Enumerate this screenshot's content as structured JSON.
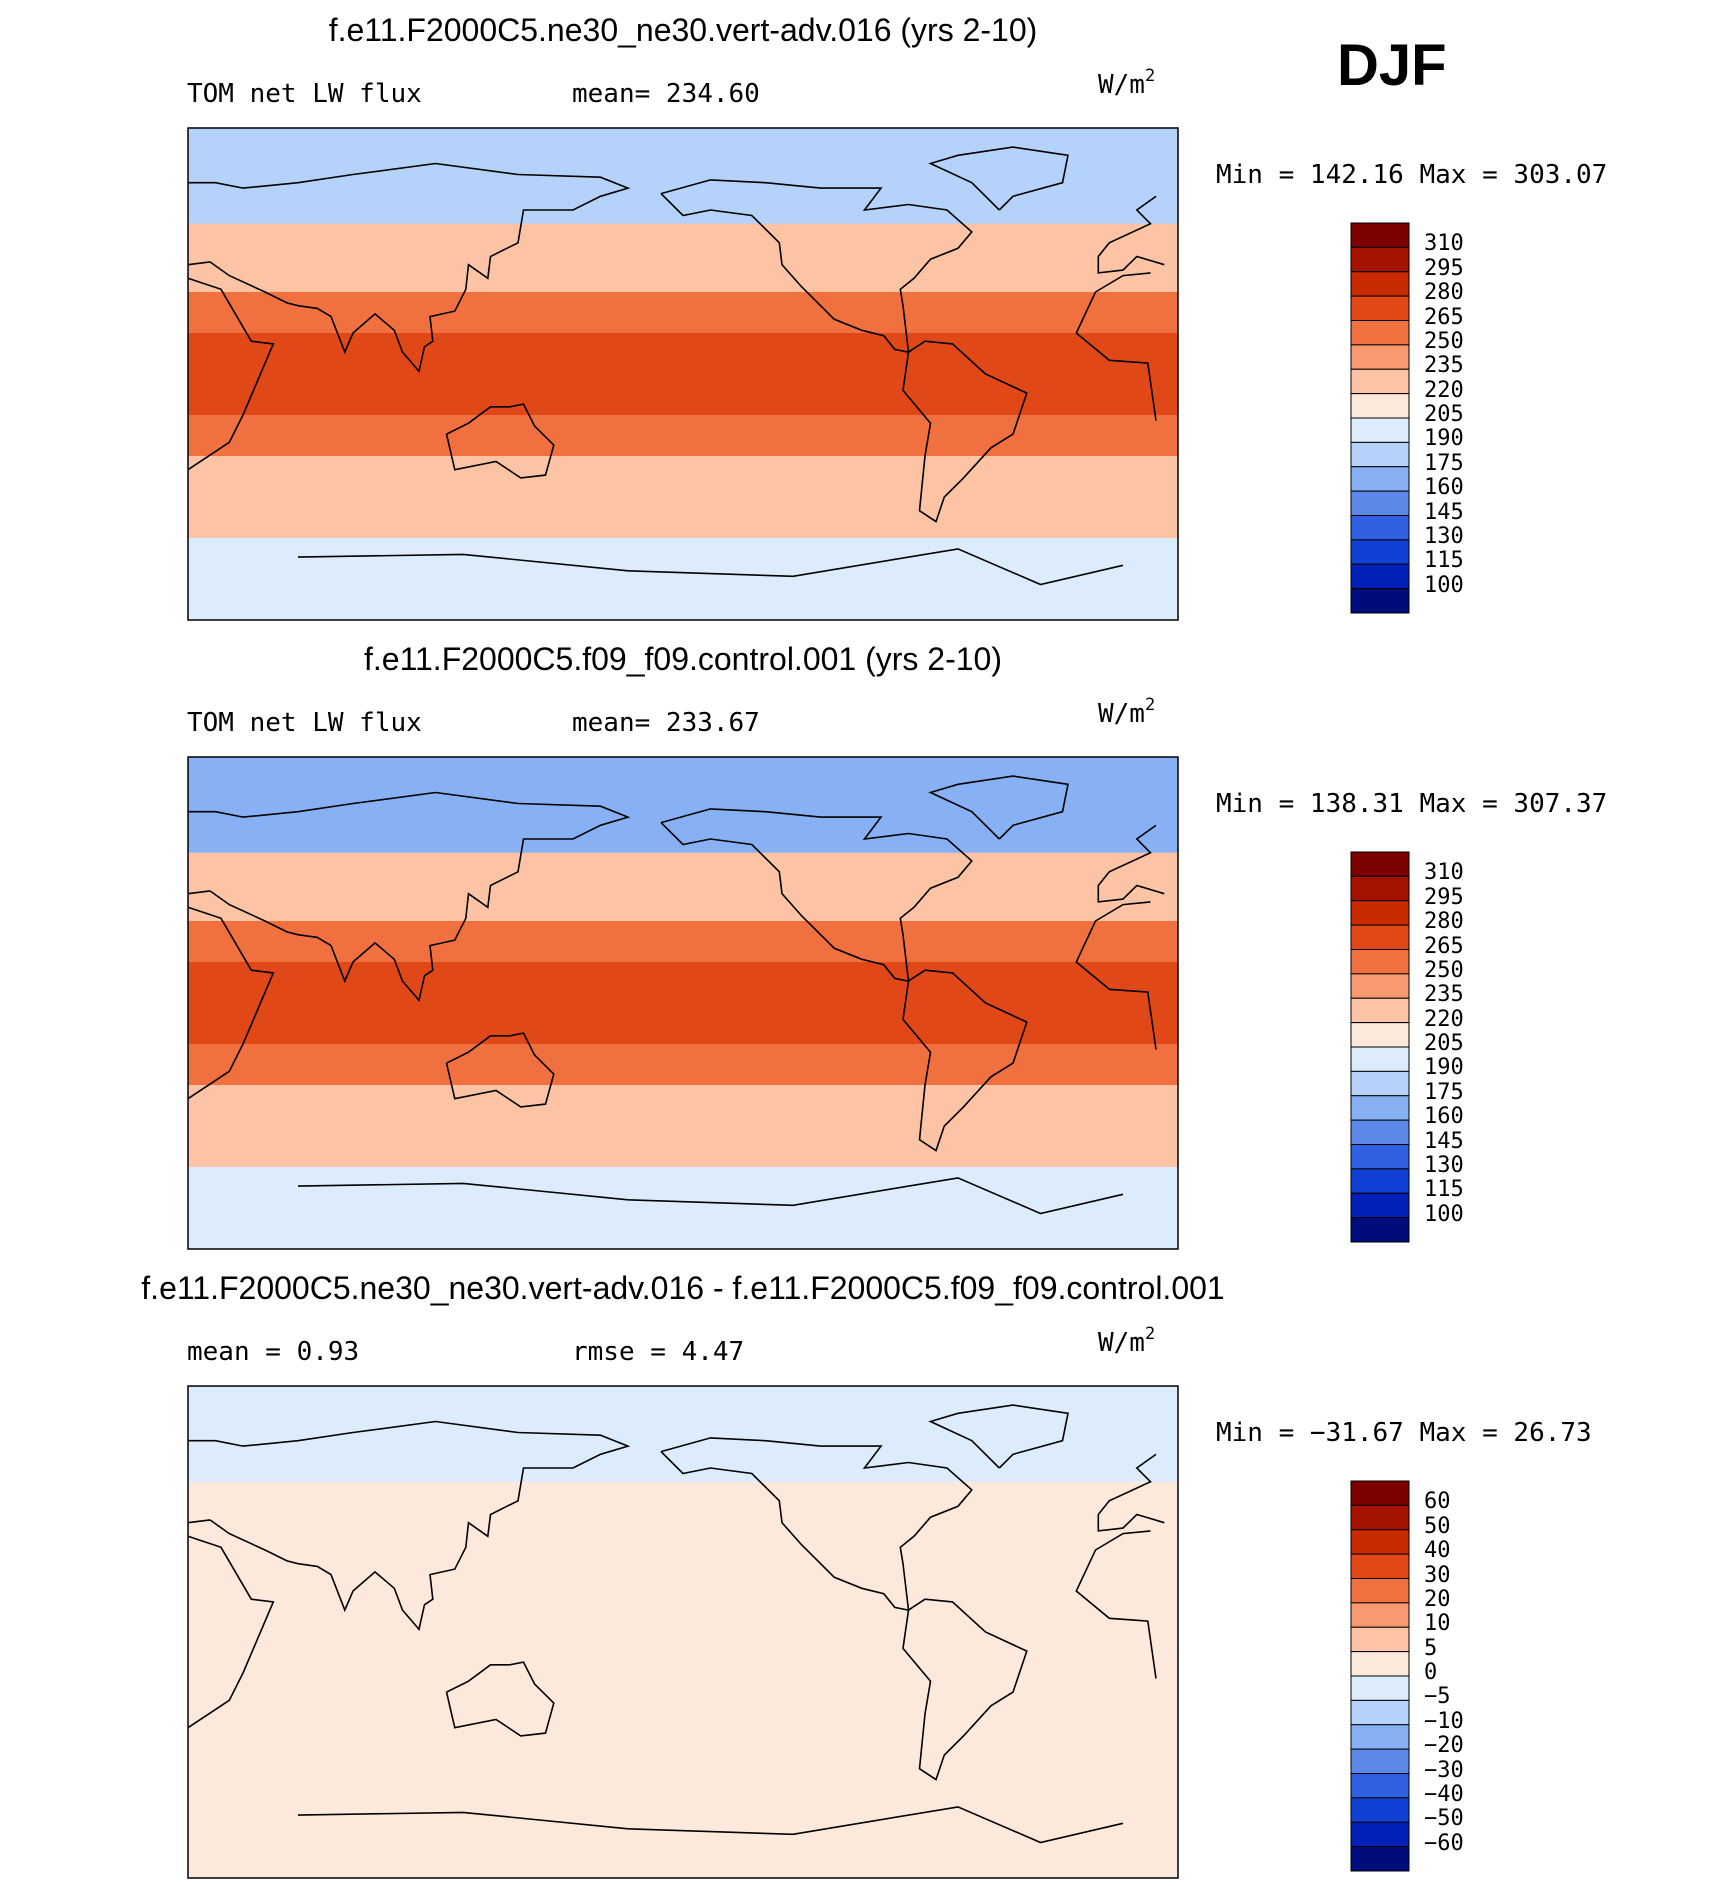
{
  "season": "DJF",
  "panels": [
    {
      "title": "f.e11.F2000C5.ne30_ne30.vert-adv.016 (yrs 2-10)",
      "left_label": "TOM net LW flux",
      "center_label": "mean= 234.60",
      "unit": "W/m",
      "unit_exp": "2",
      "minmax": "Min = 142.16 Max = 303.07",
      "colorbar": [
        "310",
        "295",
        "280",
        "265",
        "250",
        "235",
        "220",
        "205",
        "190",
        "175",
        "160",
        "145",
        "130",
        "115",
        "100"
      ]
    },
    {
      "title": "f.e11.F2000C5.f09_f09.control.001 (yrs 2-10)",
      "left_label": "TOM net LW flux",
      "center_label": "mean= 233.67",
      "unit": "W/m",
      "unit_exp": "2",
      "minmax": "Min = 138.31 Max = 307.37",
      "colorbar": [
        "310",
        "295",
        "280",
        "265",
        "250",
        "235",
        "220",
        "205",
        "190",
        "175",
        "160",
        "145",
        "130",
        "115",
        "100"
      ]
    },
    {
      "title": "f.e11.F2000C5.ne30_ne30.vert-adv.016 - f.e11.F2000C5.f09_f09.control.001",
      "left_label": "mean =    0.93",
      "center_label": "rmse =    4.47",
      "unit": "W/m",
      "unit_exp": "2",
      "minmax": "Min = −31.67 Max =   26.73",
      "colorbar": [
        "60",
        "50",
        "40",
        "30",
        "20",
        "10",
        "5",
        "0",
        "−5",
        "−10",
        "−20",
        "−30",
        "−40",
        "−50",
        "−60"
      ]
    }
  ],
  "colors": {
    "scale": [
      "#7d0000",
      "#a51200",
      "#c92a00",
      "#e04818",
      "#f07040",
      "#f89a70",
      "#fcc4a4",
      "#fde9dc",
      "#dcecfc",
      "#b4d2fa",
      "#88b0f4",
      "#5c88ea",
      "#3060e2",
      "#1040d4",
      "#0020b8",
      "#000c7c"
    ]
  },
  "chart_data": [
    {
      "type": "heatmap",
      "title": "f.e11.F2000C5.ne30_ne30.vert-adv.016 (yrs 2-10)",
      "variable": "TOM net LW flux",
      "units": "W/m2",
      "mean": 234.6,
      "min": 142.16,
      "max": 303.07,
      "levels": [
        100,
        115,
        130,
        145,
        160,
        175,
        190,
        205,
        220,
        235,
        250,
        265,
        280,
        295,
        310
      ],
      "pattern": {
        "tropics": 270,
        "subtropics": 255,
        "midlat": 220,
        "highlat_nh": 175,
        "highlat_sh": 190
      }
    },
    {
      "type": "heatmap",
      "title": "f.e11.F2000C5.f09_f09.control.001 (yrs 2-10)",
      "variable": "TOM net LW flux",
      "units": "W/m2",
      "mean": 233.67,
      "min": 138.31,
      "max": 307.37,
      "levels": [
        100,
        115,
        130,
        145,
        160,
        175,
        190,
        205,
        220,
        235,
        250,
        265,
        280,
        295,
        310
      ],
      "pattern": {
        "tropics": 272,
        "subtropics": 257,
        "midlat": 220,
        "highlat_nh": 170,
        "highlat_sh": 195
      }
    },
    {
      "type": "heatmap",
      "title": "f.e11.F2000C5.ne30_ne30.vert-adv.016 - f.e11.F2000C5.f09_f09.control.001",
      "units": "W/m2",
      "mean": 0.93,
      "rmse": 4.47,
      "min": -31.67,
      "max": 26.73,
      "levels": [
        -60,
        -50,
        -40,
        -30,
        -20,
        -10,
        -5,
        0,
        5,
        10,
        20,
        30,
        40,
        50,
        60
      ],
      "pattern": {
        "tropics": 4,
        "subtropics": 2,
        "midlat": 1,
        "highlat_nh": -3,
        "highlat_sh": 1
      }
    }
  ]
}
